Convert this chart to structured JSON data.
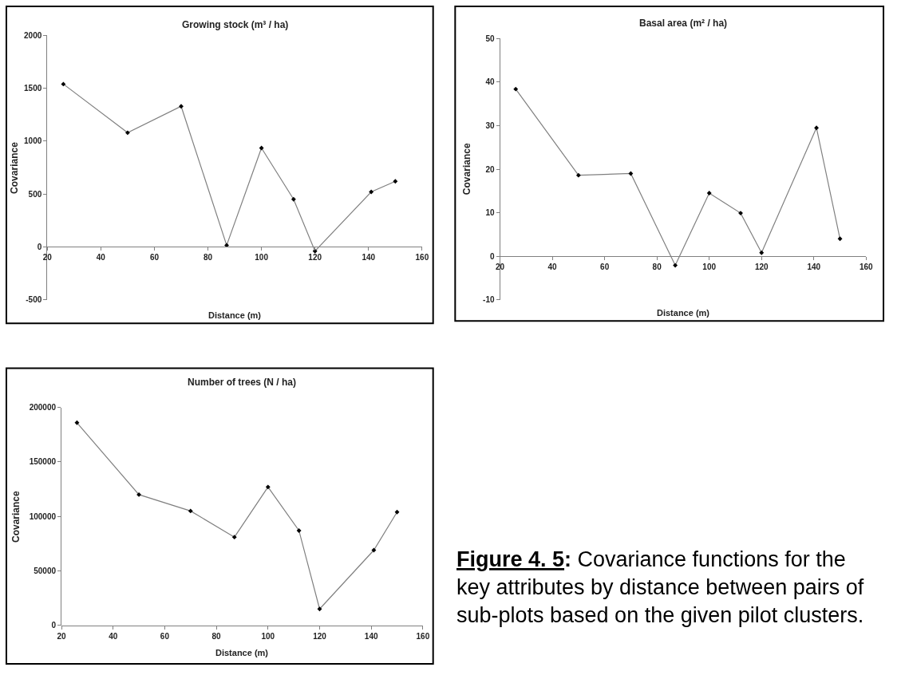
{
  "chart_data": [
    {
      "type": "line",
      "title": "Growing stock (m³ / ha)",
      "xlabel": "Distance (m)",
      "ylabel": "Covariance",
      "x": [
        26,
        50,
        70,
        87,
        100,
        112,
        120,
        141,
        150
      ],
      "series": [
        {
          "color": "#808080",
          "values": [
            1540,
            1080,
            1330,
            15,
            935,
            450,
            -40,
            520,
            620
          ]
        }
      ],
      "xlim": [
        20,
        160
      ],
      "xticks": [
        20,
        40,
        60,
        80,
        100,
        120,
        140,
        160
      ],
      "ylim": [
        -500,
        2000
      ],
      "yticks": [
        -500,
        0,
        500,
        1000,
        1500,
        2000
      ],
      "grid": false,
      "marker": "diamond",
      "line_style": "solid"
    },
    {
      "type": "line",
      "title": "Basal area (m² / ha)",
      "xlabel": "Distance (m)",
      "ylabel": "Covariance",
      "x": [
        26,
        50,
        70,
        87,
        100,
        112,
        120,
        141,
        150
      ],
      "series": [
        {
          "color": "#808080",
          "values": [
            38.4,
            18.6,
            19.0,
            -2.1,
            14.5,
            9.9,
            0.8,
            29.5,
            4.0
          ]
        }
      ],
      "xlim": [
        20,
        160
      ],
      "xticks": [
        20,
        40,
        60,
        80,
        100,
        120,
        140,
        160
      ],
      "ylim": [
        -10,
        50
      ],
      "yticks": [
        -10,
        0,
        10,
        20,
        30,
        40,
        50
      ],
      "grid": false,
      "marker": "diamond",
      "line_style": "solid"
    },
    {
      "type": "line",
      "title": "Number of trees (N / ha)",
      "xlabel": "Distance (m)",
      "ylabel": "Covariance",
      "x": [
        26,
        50,
        70,
        87,
        100,
        112,
        120,
        141,
        150
      ],
      "series": [
        {
          "color": "#808080",
          "values": [
            186000,
            120000,
            105000,
            81000,
            127000,
            87000,
            15000,
            69000,
            104000
          ]
        }
      ],
      "xlim": [
        20,
        160
      ],
      "xticks": [
        20,
        40,
        60,
        80,
        100,
        120,
        140,
        160
      ],
      "ylim": [
        0,
        200000
      ],
      "yticks": [
        0,
        50000,
        100000,
        150000,
        200000
      ],
      "grid": false,
      "marker": "diamond",
      "line_style": "solid",
      "annotations": [
        "Figure 4. 5: Covariance functions for the key attributes by distance between pairs of sub-plots based on the given pilot clusters."
      ]
    }
  ]
}
